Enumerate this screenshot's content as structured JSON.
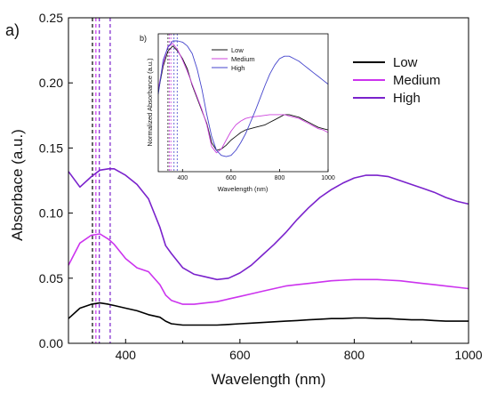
{
  "chart_data": [
    {
      "type": "line",
      "panel_label": "a)",
      "xlabel": "Wavelength (nm)",
      "ylabel": "Absorbace (a.u.)",
      "xlim": [
        300,
        1000
      ],
      "ylim": [
        0,
        0.25
      ],
      "x_ticks": [
        "400",
        "600",
        "800",
        "1000"
      ],
      "x_tick_values": [
        400,
        600,
        800,
        1000
      ],
      "y_ticks": [
        "0.00",
        "0.05",
        "0.10",
        "0.15",
        "0.20",
        "0.25"
      ],
      "y_tick_values": [
        0,
        0.05,
        0.1,
        0.15,
        0.2,
        0.25
      ],
      "legend_position": "top-right",
      "x": [
        300,
        320,
        340,
        355,
        370,
        380,
        400,
        420,
        440,
        460,
        470,
        480,
        500,
        520,
        540,
        560,
        580,
        600,
        620,
        640,
        660,
        680,
        700,
        720,
        740,
        760,
        780,
        800,
        820,
        840,
        860,
        880,
        900,
        920,
        940,
        960,
        980,
        1000
      ],
      "series": [
        {
          "name": "Low",
          "color": "#000000",
          "values": [
            0.019,
            0.027,
            0.03,
            0.031,
            0.03,
            0.029,
            0.027,
            0.025,
            0.022,
            0.02,
            0.017,
            0.015,
            0.014,
            0.014,
            0.014,
            0.014,
            0.0145,
            0.015,
            0.0155,
            0.016,
            0.0165,
            0.017,
            0.0175,
            0.018,
            0.0185,
            0.019,
            0.019,
            0.0195,
            0.0195,
            0.019,
            0.019,
            0.0185,
            0.018,
            0.018,
            0.0175,
            0.017,
            0.017,
            0.017
          ]
        },
        {
          "name": "Medium",
          "color": "#cc33ee",
          "values": [
            0.06,
            0.077,
            0.083,
            0.084,
            0.08,
            0.076,
            0.065,
            0.058,
            0.055,
            0.045,
            0.037,
            0.033,
            0.03,
            0.03,
            0.031,
            0.032,
            0.034,
            0.036,
            0.038,
            0.04,
            0.042,
            0.044,
            0.045,
            0.046,
            0.047,
            0.048,
            0.0485,
            0.049,
            0.049,
            0.049,
            0.0485,
            0.048,
            0.047,
            0.046,
            0.045,
            0.044,
            0.043,
            0.042
          ]
        },
        {
          "name": "High",
          "color": "#7a22cc",
          "values": [
            0.132,
            0.12,
            0.128,
            0.133,
            0.134,
            0.134,
            0.129,
            0.122,
            0.111,
            0.089,
            0.075,
            0.069,
            0.058,
            0.053,
            0.051,
            0.049,
            0.05,
            0.054,
            0.06,
            0.068,
            0.076,
            0.085,
            0.095,
            0.104,
            0.112,
            0.118,
            0.123,
            0.127,
            0.129,
            0.129,
            0.128,
            0.125,
            0.122,
            0.119,
            0.116,
            0.112,
            0.109,
            0.107
          ]
        }
      ],
      "vertical_lines": [
        {
          "x": 342,
          "color": "#000000"
        },
        {
          "x": 348,
          "color": "#cc33ee"
        },
        {
          "x": 354,
          "color": "#7a22cc"
        },
        {
          "x": 373,
          "color": "#7a22cc"
        }
      ]
    },
    {
      "type": "line",
      "panel_label": "b)",
      "xlabel": "Wavelength (nm)",
      "ylabel": "Normalized Absorbance (a.u.)",
      "xlim": [
        300,
        1000
      ],
      "x_ticks": [
        "400",
        "600",
        "800",
        "1000"
      ],
      "x_tick_values": [
        400,
        600,
        800,
        1000
      ],
      "y_ticks": [],
      "legend_position": "top-left",
      "x": [
        300,
        320,
        340,
        360,
        380,
        400,
        420,
        440,
        460,
        480,
        500,
        520,
        540,
        560,
        580,
        600,
        620,
        640,
        660,
        680,
        700,
        720,
        740,
        760,
        780,
        800,
        820,
        840,
        860,
        880,
        900,
        920,
        940,
        960,
        980,
        1000
      ],
      "series": [
        {
          "name": "Low",
          "color": "#111111",
          "values": [
            0.6,
            0.8,
            0.92,
            0.96,
            0.92,
            0.86,
            0.78,
            0.65,
            0.55,
            0.45,
            0.35,
            0.2,
            0.14,
            0.15,
            0.18,
            0.22,
            0.25,
            0.28,
            0.3,
            0.31,
            0.32,
            0.33,
            0.34,
            0.36,
            0.38,
            0.4,
            0.42,
            0.42,
            0.41,
            0.4,
            0.38,
            0.36,
            0.34,
            0.32,
            0.31,
            0.3
          ]
        },
        {
          "name": "Medium",
          "color": "#cc44dd",
          "values": [
            0.62,
            0.82,
            0.96,
            0.98,
            0.93,
            0.85,
            0.76,
            0.66,
            0.56,
            0.46,
            0.34,
            0.17,
            0.12,
            0.15,
            0.22,
            0.29,
            0.34,
            0.37,
            0.39,
            0.4,
            0.405,
            0.41,
            0.415,
            0.42,
            0.42,
            0.42,
            0.42,
            0.41,
            0.4,
            0.39,
            0.37,
            0.35,
            0.33,
            0.31,
            0.3,
            0.28
          ]
        },
        {
          "name": "High",
          "color": "#4444cc",
          "values": [
            0.58,
            0.85,
            0.95,
            1.0,
            1.0,
            0.99,
            0.96,
            0.9,
            0.78,
            0.62,
            0.42,
            0.25,
            0.14,
            0.1,
            0.09,
            0.1,
            0.14,
            0.2,
            0.27,
            0.36,
            0.45,
            0.55,
            0.65,
            0.74,
            0.81,
            0.86,
            0.88,
            0.88,
            0.86,
            0.84,
            0.81,
            0.78,
            0.75,
            0.72,
            0.69,
            0.66
          ]
        }
      ],
      "vertical_lines": [
        {
          "x": 340,
          "color": "#111111"
        },
        {
          "x": 346,
          "color": "#cc44dd"
        },
        {
          "x": 352,
          "color": "#cc44dd"
        },
        {
          "x": 365,
          "color": "#4444cc"
        },
        {
          "x": 378,
          "color": "#4444cc"
        }
      ]
    }
  ]
}
